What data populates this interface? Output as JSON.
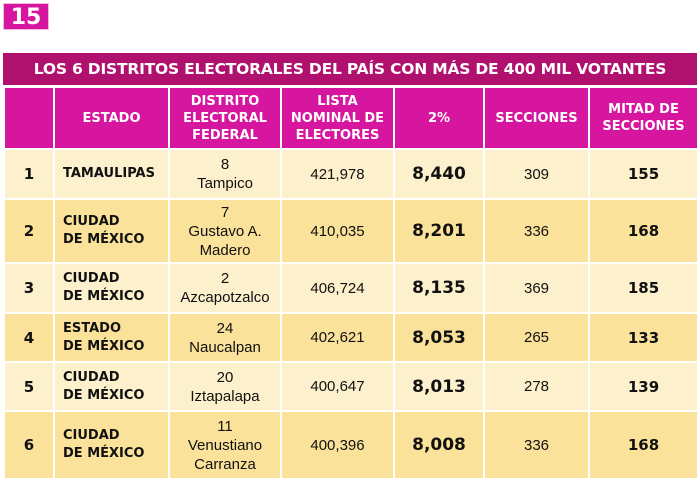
{
  "badge": "15",
  "title": "LOS 6 DISTRITOS ELECTORALES DEL PAÍS CON MÁS DE 400 MIL VOTANTES",
  "headers": [
    "",
    "ESTADO",
    "DISTRITO ELECTORAL FEDERAL",
    "LISTA NOMINAL DE ELECTORES",
    "2%",
    "SECCIONES",
    "MITAD DE SECCIONES"
  ],
  "rows": [
    {
      "n": "1",
      "estado": "TAMAULIPAS",
      "estado2": "",
      "dnum": "8",
      "dname": "Tampico",
      "lista": "421,978",
      "pct": "8,440",
      "secc": "309",
      "mitad": "155"
    },
    {
      "n": "2",
      "estado": "CIUDAD",
      "estado2": "DE MÉXICO",
      "dnum": "7",
      "dname": "Gustavo A. Madero",
      "lista": "410,035",
      "pct": "8,201",
      "secc": "336",
      "mitad": "168"
    },
    {
      "n": "3",
      "estado": "CIUDAD",
      "estado2": "DE MÉXICO",
      "dnum": "2",
      "dname": "Azcapotzalco",
      "lista": "406,724",
      "pct": "8,135",
      "secc": "369",
      "mitad": "185"
    },
    {
      "n": "4",
      "estado": "ESTADO",
      "estado2": "DE MÉXICO",
      "dnum": "24",
      "dname": "Naucalpan",
      "lista": "402,621",
      "pct": "8,053",
      "secc": "265",
      "mitad": "133"
    },
    {
      "n": "5",
      "estado": "CIUDAD",
      "estado2": "DE MÉXICO",
      "dnum": "20",
      "dname": "Iztapalapa",
      "lista": "400,647",
      "pct": "8,013",
      "secc": "278",
      "mitad": "139"
    },
    {
      "n": "6",
      "estado": "CIUDAD",
      "estado2": "DE MÉXICO",
      "dnum": "11",
      "dname": "Venustiano Carranza",
      "lista": "400,396",
      "pct": "8,008",
      "secc": "336",
      "mitad": "168"
    }
  ]
}
